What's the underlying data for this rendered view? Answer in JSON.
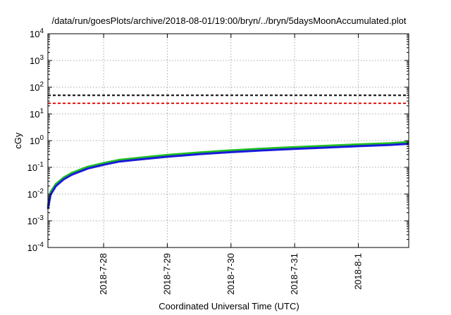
{
  "chart_data": {
    "type": "line",
    "title": "/data/run/goesPlots/archive/2018-08-01/19:00/bryn/../bryn/5daysMoonAccumulated.plot",
    "xlabel": "Coordinated Universal Time (UTC)",
    "ylabel": "cGy",
    "y_scale": "log",
    "ylim": [
      0.0001,
      10000
    ],
    "xlim": [
      "2018-07-27 03:00",
      "2018-08-01 19:00"
    ],
    "x_ticks": [
      "2018-7-28",
      "2018-7-29",
      "2018-7-30",
      "2018-7-31",
      "2018-8-1"
    ],
    "y_ticks": [
      {
        "base": "10",
        "exp": "4"
      },
      {
        "base": "10",
        "exp": "3"
      },
      {
        "base": "10",
        "exp": "2"
      },
      {
        "base": "10",
        "exp": "1"
      },
      {
        "base": "10",
        "exp": "0"
      },
      {
        "base": "10",
        "exp": "-1"
      },
      {
        "base": "10",
        "exp": "-2"
      },
      {
        "base": "10",
        "exp": "-3"
      },
      {
        "base": "10",
        "exp": "-4"
      }
    ],
    "grid": true,
    "reference_lines": [
      {
        "y": 50,
        "color": "#000000",
        "style": "dashed"
      },
      {
        "y": 25,
        "color": "#e8120c",
        "style": "dashed"
      }
    ],
    "series": [
      {
        "color": "#1fc01f",
        "x": [
          "2018-07-27 03:00",
          "2018-07-27 04:00",
          "2018-07-27 06:00",
          "2018-07-27 09:00",
          "2018-07-27 12:00",
          "2018-07-27 18:00",
          "2018-07-28 00:00",
          "2018-07-28 06:00",
          "2018-07-28 12:00",
          "2018-07-29 00:00",
          "2018-07-29 12:00",
          "2018-07-30 00:00",
          "2018-07-30 12:00",
          "2018-07-31 00:00",
          "2018-07-31 12:00",
          "2018-08-01 00:00",
          "2018-08-01 12:00",
          "2018-08-01 19:00"
        ],
        "values": [
          0.0035,
          0.012,
          0.024,
          0.042,
          0.062,
          0.105,
          0.145,
          0.19,
          0.22,
          0.29,
          0.36,
          0.43,
          0.5,
          0.57,
          0.64,
          0.72,
          0.8,
          0.88
        ]
      },
      {
        "color": "#1a1adc",
        "x": [
          "2018-07-27 03:00",
          "2018-07-27 04:00",
          "2018-07-27 06:00",
          "2018-07-27 09:00",
          "2018-07-27 12:00",
          "2018-07-27 18:00",
          "2018-07-28 00:00",
          "2018-07-28 06:00",
          "2018-07-28 12:00",
          "2018-07-29 00:00",
          "2018-07-29 12:00",
          "2018-07-30 00:00",
          "2018-07-30 12:00",
          "2018-07-31 00:00",
          "2018-07-31 12:00",
          "2018-08-01 00:00",
          "2018-08-01 12:00",
          "2018-08-01 19:00"
        ],
        "values": [
          0.0028,
          0.0095,
          0.02,
          0.036,
          0.053,
          0.09,
          0.125,
          0.165,
          0.19,
          0.25,
          0.31,
          0.37,
          0.43,
          0.49,
          0.55,
          0.62,
          0.69,
          0.76
        ]
      }
    ]
  }
}
